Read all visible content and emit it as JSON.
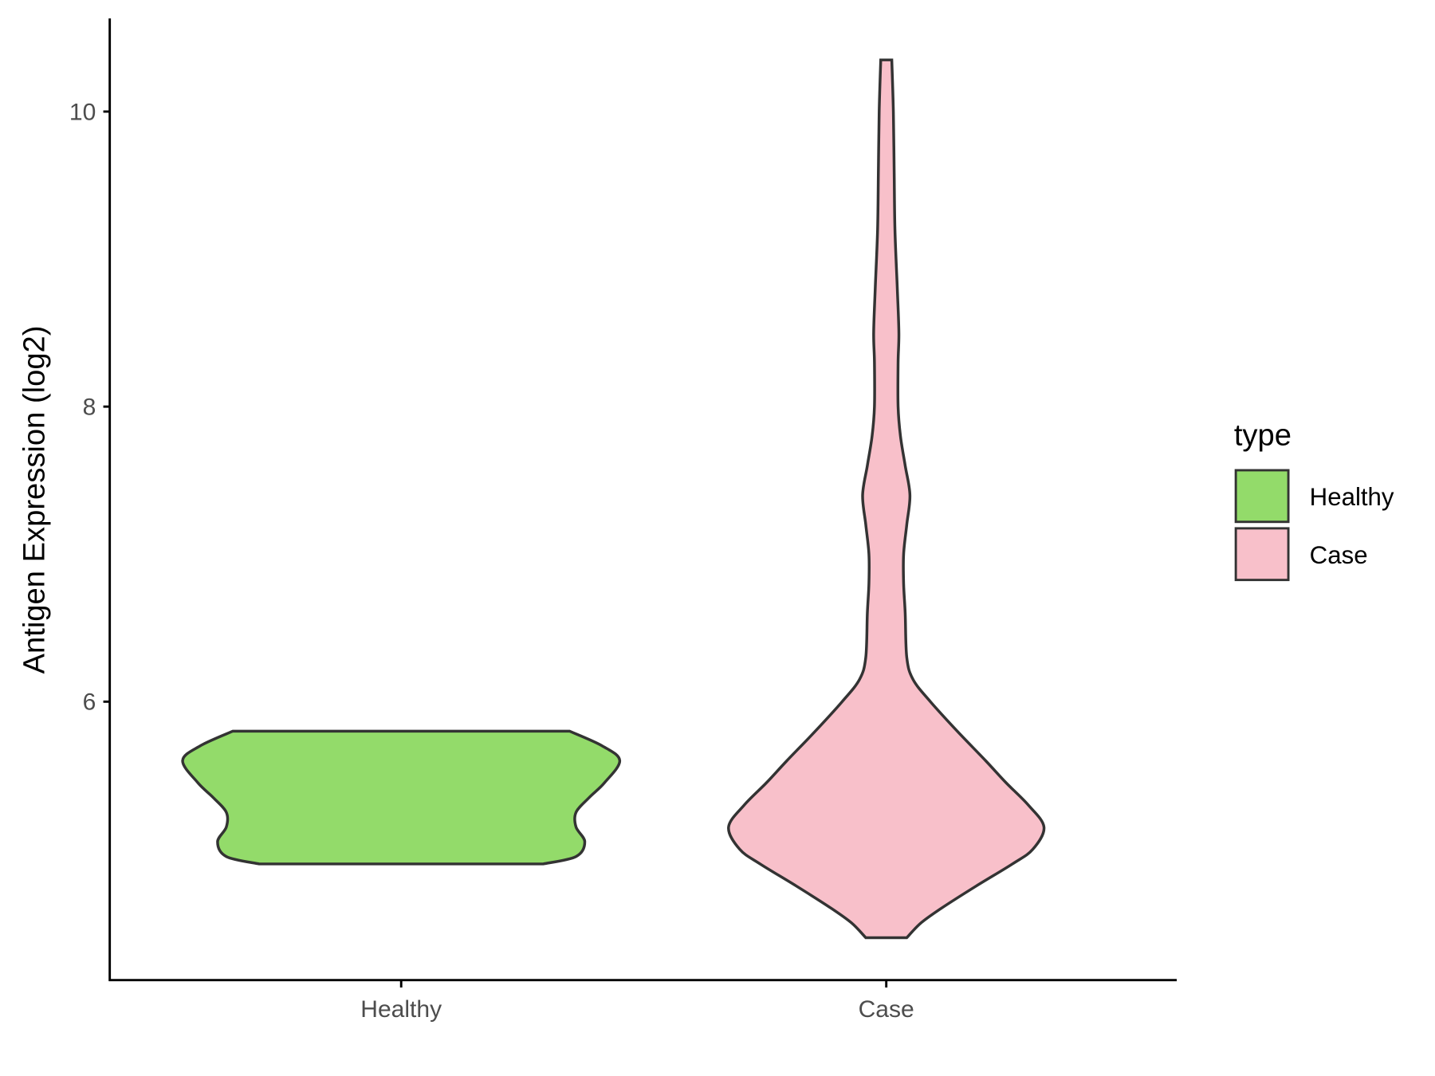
{
  "chart_data": {
    "type": "violin",
    "title": "",
    "xlabel": "",
    "ylabel": "Antigen Expression (log2)",
    "ylim": [
      4.11,
      10.63
    ],
    "yticks": [
      6,
      8,
      10
    ],
    "ytick_labels": [
      "6",
      "8",
      "10"
    ],
    "categories": [
      "Healthy",
      "Case"
    ],
    "grid": false,
    "legend": {
      "title": "type",
      "placement": "right",
      "entries": [
        "Healthy",
        "Case"
      ]
    },
    "series": [
      {
        "name": "Healthy",
        "color": "#93DB6A",
        "y_min": 4.9,
        "y_max": 5.8,
        "profile": [
          [
            4.9,
            0.65
          ],
          [
            4.95,
            0.8
          ],
          [
            5.05,
            0.84
          ],
          [
            5.15,
            0.8
          ],
          [
            5.25,
            0.8
          ],
          [
            5.35,
            0.86
          ],
          [
            5.45,
            0.93
          ],
          [
            5.6,
            1.0
          ],
          [
            5.7,
            0.92
          ],
          [
            5.8,
            0.77
          ]
        ]
      },
      {
        "name": "Case",
        "color": "#F8C0CA",
        "y_min": 4.4,
        "y_max": 10.35,
        "profile": [
          [
            4.4,
            0.13
          ],
          [
            4.5,
            0.22
          ],
          [
            4.6,
            0.35
          ],
          [
            4.75,
            0.57
          ],
          [
            4.9,
            0.8
          ],
          [
            5.0,
            0.93
          ],
          [
            5.15,
            1.0
          ],
          [
            5.3,
            0.9
          ],
          [
            5.45,
            0.76
          ],
          [
            5.6,
            0.63
          ],
          [
            5.8,
            0.45
          ],
          [
            6.0,
            0.28
          ],
          [
            6.15,
            0.17
          ],
          [
            6.3,
            0.13
          ],
          [
            6.6,
            0.12
          ],
          [
            6.8,
            0.11
          ],
          [
            7.0,
            0.11
          ],
          [
            7.2,
            0.13
          ],
          [
            7.4,
            0.15
          ],
          [
            7.6,
            0.12
          ],
          [
            7.8,
            0.09
          ],
          [
            8.0,
            0.075
          ],
          [
            8.3,
            0.075
          ],
          [
            8.5,
            0.08
          ],
          [
            8.8,
            0.07
          ],
          [
            9.2,
            0.055
          ],
          [
            9.6,
            0.05
          ],
          [
            10.0,
            0.045
          ],
          [
            10.35,
            0.035
          ]
        ]
      }
    ]
  }
}
